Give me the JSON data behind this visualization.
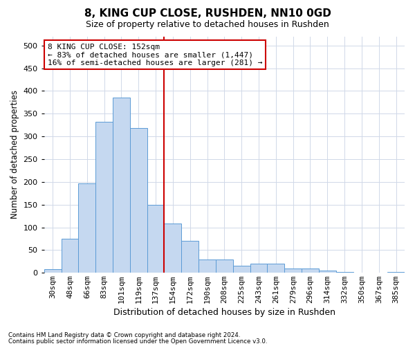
{
  "title": "8, KING CUP CLOSE, RUSHDEN, NN10 0GD",
  "subtitle": "Size of property relative to detached houses in Rushden",
  "xlabel": "Distribution of detached houses by size in Rushden",
  "ylabel": "Number of detached properties",
  "categories": [
    "30sqm",
    "48sqm",
    "66sqm",
    "83sqm",
    "101sqm",
    "119sqm",
    "137sqm",
    "154sqm",
    "172sqm",
    "190sqm",
    "208sqm",
    "225sqm",
    "243sqm",
    "261sqm",
    "279sqm",
    "296sqm",
    "314sqm",
    "332sqm",
    "350sqm",
    "367sqm",
    "385sqm"
  ],
  "bar_heights": [
    8,
    75,
    197,
    332,
    385,
    318,
    150,
    108,
    70,
    30,
    30,
    15,
    20,
    20,
    10,
    10,
    5,
    2,
    0,
    0,
    2
  ],
  "bar_color": "#c5d8f0",
  "bar_edge_color": "#5b9bd5",
  "vline_x": 7.0,
  "vline_color": "#cc0000",
  "annotation_text": "8 KING CUP CLOSE: 152sqm\n← 83% of detached houses are smaller (1,447)\n16% of semi-detached houses are larger (281) →",
  "annotation_box_color": "#ffffff",
  "annotation_box_edge": "#cc0000",
  "ylim": [
    0,
    520
  ],
  "yticks": [
    0,
    50,
    100,
    150,
    200,
    250,
    300,
    350,
    400,
    450,
    500
  ],
  "footer1": "Contains HM Land Registry data © Crown copyright and database right 2024.",
  "footer2": "Contains public sector information licensed under the Open Government Licence v3.0.",
  "background_color": "#ffffff",
  "grid_color": "#d0d8e8",
  "title_fontsize": 11,
  "subtitle_fontsize": 9,
  "ylabel_fontsize": 8.5,
  "xlabel_fontsize": 9,
  "tick_fontsize": 8,
  "annot_fontsize": 8
}
